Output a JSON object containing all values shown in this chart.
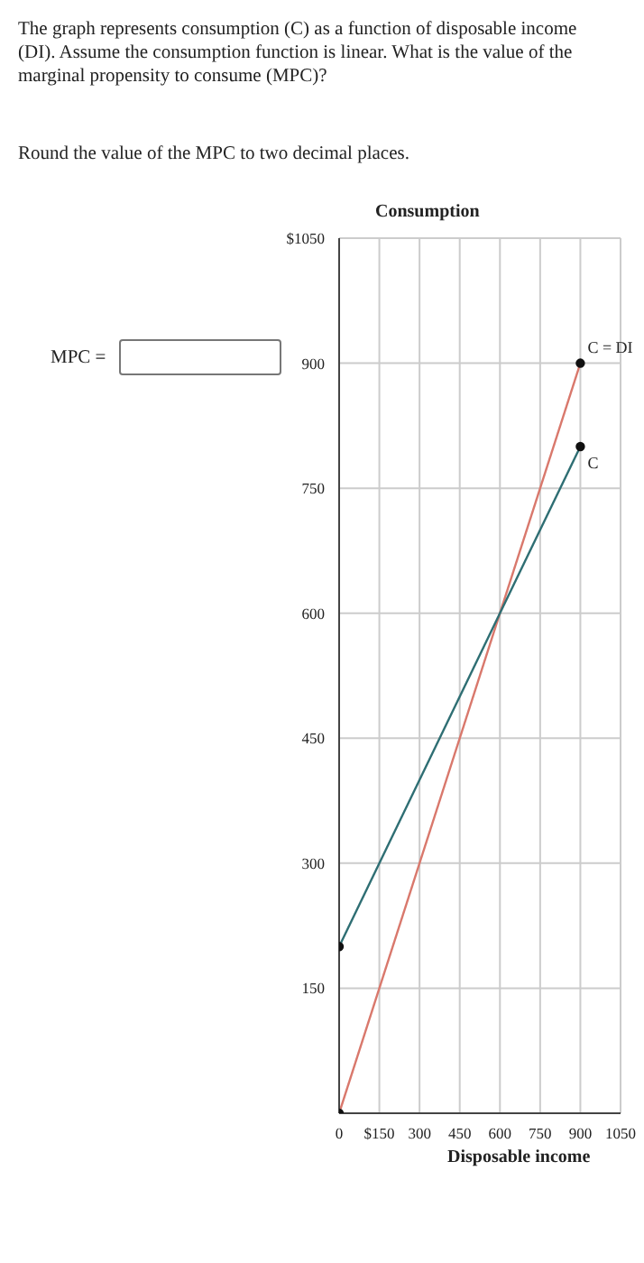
{
  "chart_data": {
    "type": "line",
    "title": "The graph represents consumption (C) as a function of disposable income (DI). Assume the consumption function is linear. What is the value of the marginal propensity to consume (MPC)?",
    "annotations": [
      "Round the value of the MPC to two decimal places.",
      "MPC ="
    ],
    "xlabel": "Disposable income",
    "ylabel": "Consumption",
    "x": [
      0,
      900
    ],
    "series": [
      {
        "name": "C = DI",
        "color": "#d9786c",
        "values": [
          0,
          900
        ]
      },
      {
        "name": "C",
        "color": "#2e6e73",
        "values": [
          200,
          800
        ]
      }
    ],
    "xlim": [
      0,
      1050
    ],
    "xticks": [
      0,
      {
        "value": 150,
        "label": "$150"
      },
      300,
      450,
      600,
      750,
      900,
      1050
    ],
    "ylim": [
      0,
      1050
    ],
    "yticks": [
      150,
      300,
      450,
      600,
      750,
      900,
      {
        "value": 1050,
        "label": "$1050"
      }
    ],
    "grid": true,
    "marker": "circle",
    "line_style": "solid",
    "legend": false
  }
}
